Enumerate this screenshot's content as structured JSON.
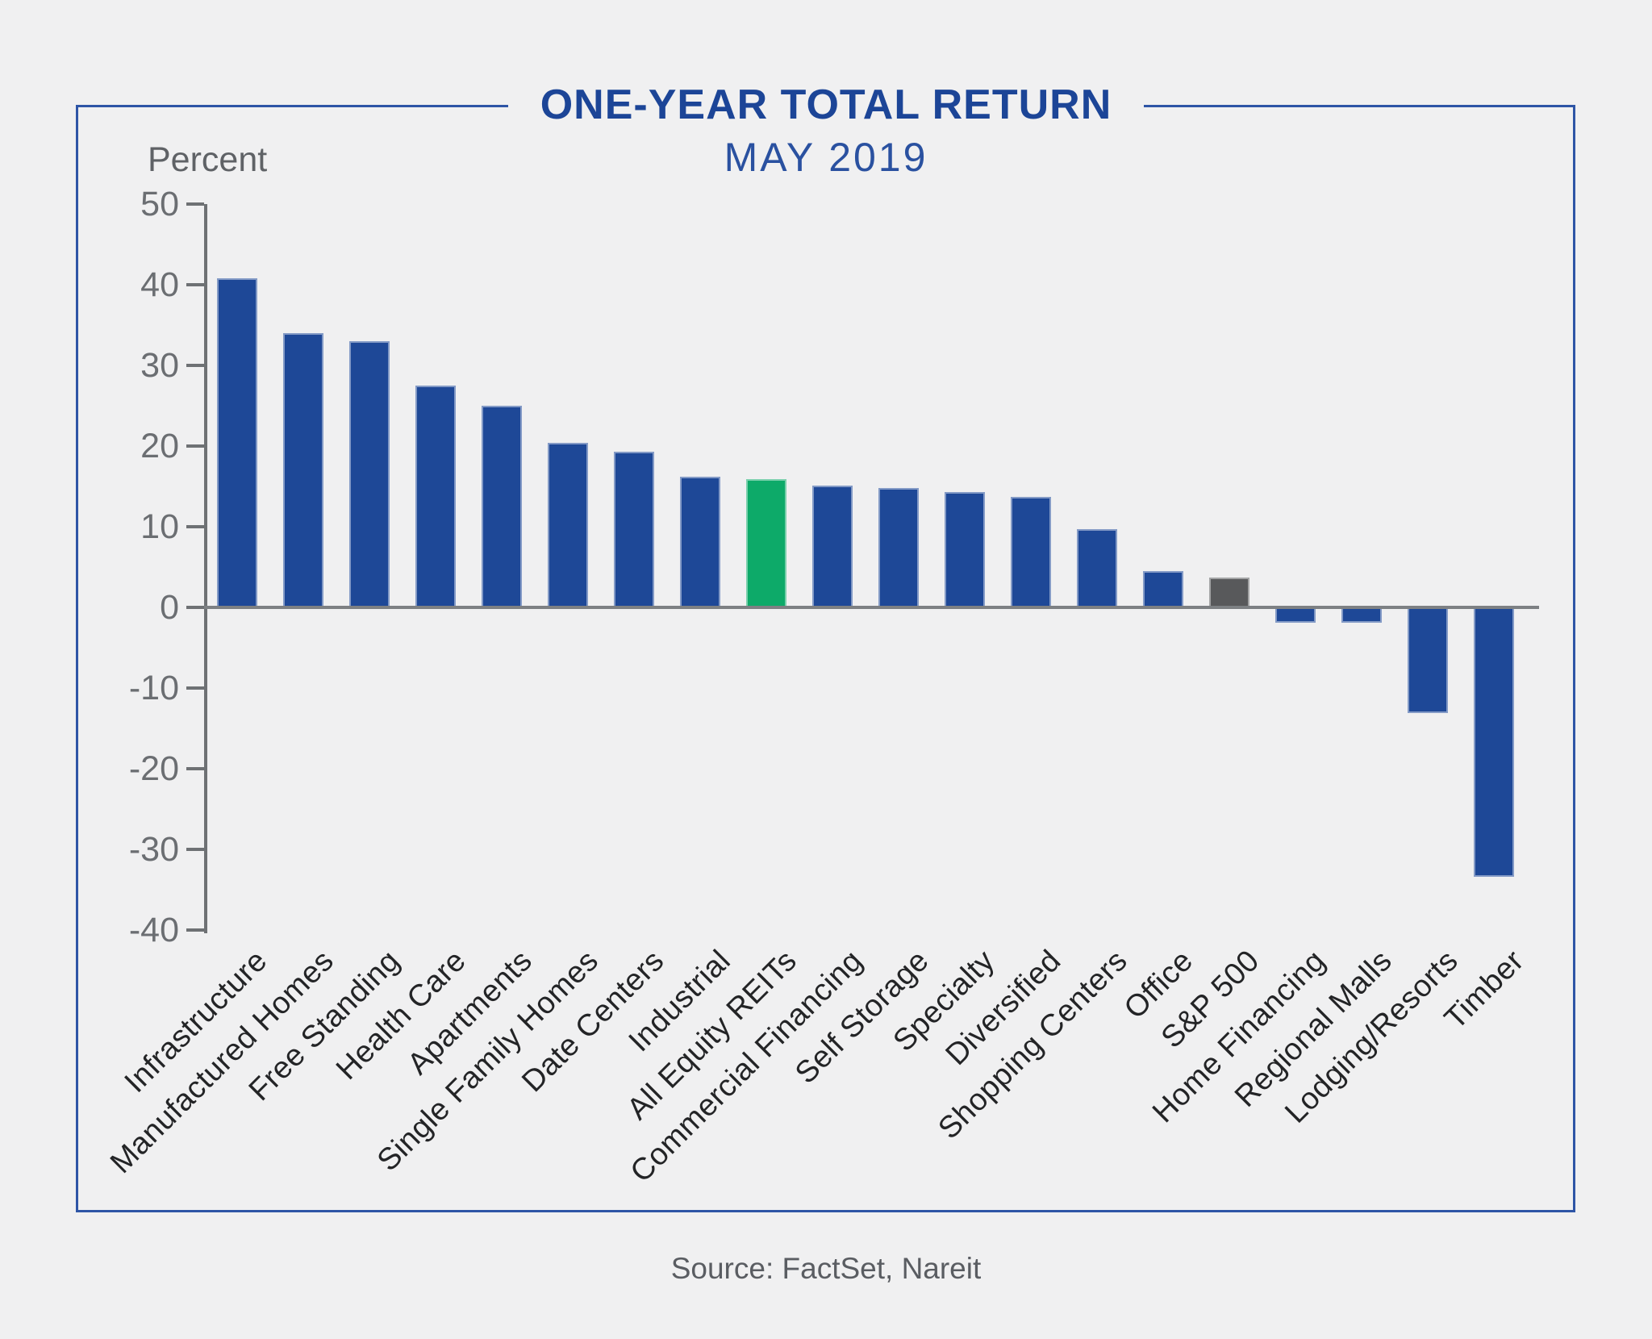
{
  "title": "ONE-YEAR TOTAL RETURN",
  "subtitle": "MAY 2019",
  "y_axis_label": "Percent",
  "source": "Source: FactSet, Nareit",
  "colors": {
    "background": "#F0F0F1",
    "frame_border": "#2E55A6",
    "title_text": "#1C4597",
    "subtitle_text": "#2A51A0",
    "axis": "#6E7174",
    "baseline": "#7D8083",
    "tick_label_text": "#6B6E72",
    "y_axis_label_text": "#5F6266",
    "category_label_text": "#232426",
    "source_text": "#5A5D62",
    "bar": "#1E4897",
    "highlight_bar": "#0DAA69",
    "benchmark_bar": "#58595B"
  },
  "chart_data": {
    "type": "bar",
    "title": "ONE-YEAR TOTAL RETURN",
    "subtitle": "MAY 2019",
    "ylabel": "Percent",
    "xlabel": "",
    "ylim": [
      -40,
      50
    ],
    "ytick_step": 10,
    "grid": false,
    "legend": "none",
    "categories": [
      "Infrastructure",
      "Manufactured Homes",
      "Free Standing",
      "Health Care",
      "Apartments",
      "Single Family Homes",
      "Date Centers",
      "Industrial",
      "All Equity REITs",
      "Commercial Financing",
      "Self Storage",
      "Specialty",
      "Diversified",
      "Shopping Centers",
      "Office",
      "S&P 500",
      "Home Financing",
      "Regional Malls",
      "Lodging/Resorts",
      "Timber"
    ],
    "values": [
      40.8,
      34.0,
      33.0,
      27.5,
      25.0,
      20.4,
      19.3,
      16.2,
      15.9,
      15.1,
      14.8,
      14.3,
      13.7,
      9.7,
      4.5,
      3.7,
      -1.9,
      -1.9,
      -13.1,
      -33.4
    ],
    "highlight_index": 8,
    "highlight_category": "All Equity REITs",
    "benchmark_index": 15,
    "benchmark_category": "S&P 500"
  }
}
